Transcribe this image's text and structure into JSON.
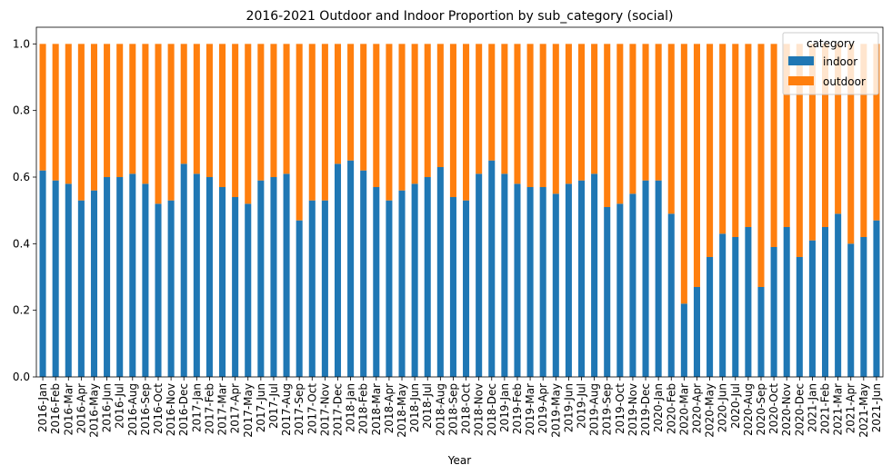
{
  "chart_data": {
    "type": "bar",
    "stacked": true,
    "title": "2016-2021 Outdoor and Indoor Proportion by sub_category (social)",
    "xlabel": "Year",
    "ylabel": "",
    "ylim": [
      0,
      1.05
    ],
    "yticks": [
      "0.0",
      "0.2",
      "0.4",
      "0.6",
      "0.8",
      "1.0"
    ],
    "categories": [
      "2016-Jan",
      "2016-Feb",
      "2016-Mar",
      "2016-Apr",
      "2016-May",
      "2016-Jun",
      "2016-Jul",
      "2016-Aug",
      "2016-Sep",
      "2016-Oct",
      "2016-Nov",
      "2016-Dec",
      "2017-Jan",
      "2017-Feb",
      "2017-Mar",
      "2017-Apr",
      "2017-May",
      "2017-Jun",
      "2017-Jul",
      "2017-Aug",
      "2017-Sep",
      "2017-Oct",
      "2017-Nov",
      "2017-Dec",
      "2018-Jan",
      "2018-Feb",
      "2018-Mar",
      "2018-Apr",
      "2018-May",
      "2018-Jun",
      "2018-Jul",
      "2018-Aug",
      "2018-Sep",
      "2018-Oct",
      "2018-Nov",
      "2018-Dec",
      "2019-Jan",
      "2019-Feb",
      "2019-Mar",
      "2019-Apr",
      "2019-May",
      "2019-Jun",
      "2019-Jul",
      "2019-Aug",
      "2019-Sep",
      "2019-Oct",
      "2019-Nov",
      "2019-Dec",
      "2020-Jan",
      "2020-Feb",
      "2020-Mar",
      "2020-Apr",
      "2020-May",
      "2020-Jun",
      "2020-Jul",
      "2020-Aug",
      "2020-Sep",
      "2020-Oct",
      "2020-Nov",
      "2020-Dec",
      "2021-Jan",
      "2021-Feb",
      "2021-Mar",
      "2021-Apr",
      "2021-May",
      "2021-Jun"
    ],
    "series": [
      {
        "name": "indoor",
        "color": "#1f77b4",
        "values": [
          0.62,
          0.59,
          0.58,
          0.53,
          0.56,
          0.6,
          0.6,
          0.61,
          0.58,
          0.52,
          0.53,
          0.64,
          0.61,
          0.6,
          0.57,
          0.54,
          0.52,
          0.59,
          0.6,
          0.61,
          0.47,
          0.53,
          0.53,
          0.64,
          0.65,
          0.62,
          0.57,
          0.53,
          0.56,
          0.58,
          0.6,
          0.63,
          0.54,
          0.53,
          0.61,
          0.65,
          0.61,
          0.58,
          0.57,
          0.57,
          0.55,
          0.58,
          0.59,
          0.61,
          0.51,
          0.52,
          0.55,
          0.59,
          0.59,
          0.49,
          0.22,
          0.27,
          0.36,
          0.43,
          0.42,
          0.45,
          0.27,
          0.39,
          0.45,
          0.36,
          0.41,
          0.45,
          0.49,
          0.4,
          0.42,
          0.47
        ]
      },
      {
        "name": "outdoor",
        "color": "#ff7f0e",
        "values": [
          0.38,
          0.41,
          0.42,
          0.47,
          0.44,
          0.4,
          0.4,
          0.39,
          0.42,
          0.48,
          0.47,
          0.36,
          0.39,
          0.4,
          0.43,
          0.46,
          0.48,
          0.41,
          0.4,
          0.39,
          0.53,
          0.47,
          0.47,
          0.36,
          0.35,
          0.38,
          0.43,
          0.47,
          0.44,
          0.42,
          0.4,
          0.37,
          0.46,
          0.47,
          0.39,
          0.35,
          0.39,
          0.42,
          0.43,
          0.43,
          0.45,
          0.42,
          0.41,
          0.39,
          0.49,
          0.48,
          0.45,
          0.41,
          0.41,
          0.51,
          0.78,
          0.73,
          0.64,
          0.57,
          0.58,
          0.55,
          0.73,
          0.61,
          0.55,
          0.64,
          0.59,
          0.55,
          0.51,
          0.6,
          0.58,
          0.53
        ]
      }
    ],
    "legend": {
      "title": "category",
      "position": "top-right"
    },
    "grid": false
  }
}
